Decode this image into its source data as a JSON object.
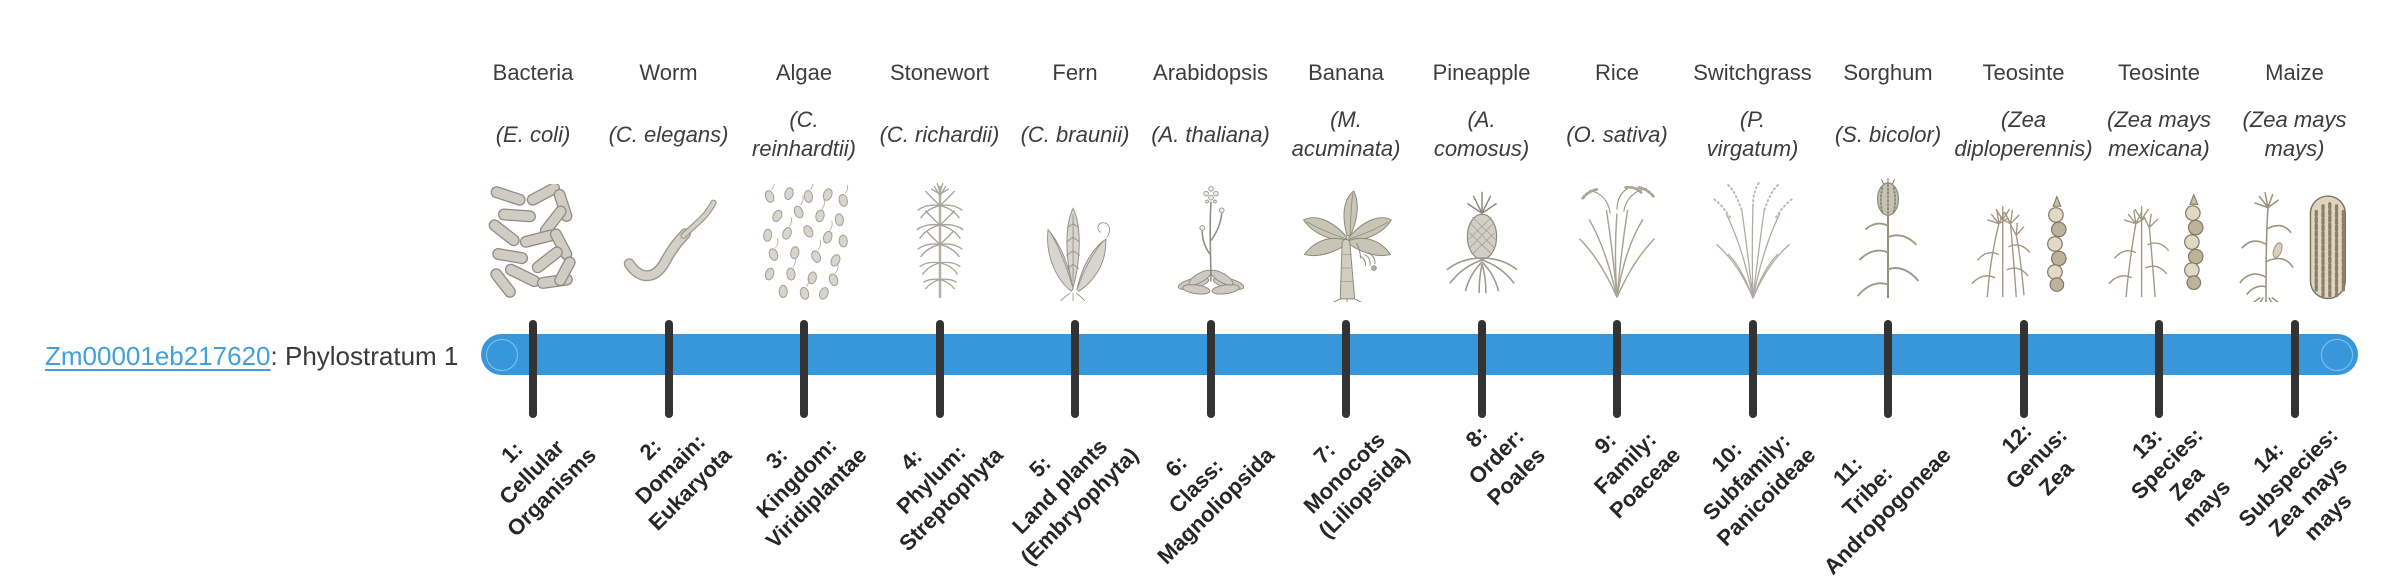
{
  "gene": {
    "id": "Zm00001eb217620",
    "suffix": ": Phylostratum 1"
  },
  "timeline": {
    "bar_color": "#3897db",
    "tick_color": "#333333",
    "link_color": "#419fdd"
  },
  "organisms": [
    {
      "name": "Bacteria",
      "sci": [
        "(E. coli)"
      ],
      "icon": "bacteria"
    },
    {
      "name": "Worm",
      "sci": [
        "(C. elegans)"
      ],
      "icon": "worm"
    },
    {
      "name": "Algae",
      "sci": [
        "(C.",
        "reinhardtii)"
      ],
      "icon": "algae"
    },
    {
      "name": "Stonewort",
      "sci": [
        "(C. richardii)"
      ],
      "icon": "stonewort"
    },
    {
      "name": "Fern",
      "sci": [
        "(C. braunii)"
      ],
      "icon": "fern"
    },
    {
      "name": "Arabidopsis",
      "sci": [
        "(A. thaliana)"
      ],
      "icon": "arabidopsis"
    },
    {
      "name": "Banana",
      "sci": [
        "(M.",
        "acuminata)"
      ],
      "icon": "banana"
    },
    {
      "name": "Pineapple",
      "sci": [
        "(A.",
        "comosus)"
      ],
      "icon": "pineapple"
    },
    {
      "name": "Rice",
      "sci": [
        "(O. sativa)"
      ],
      "icon": "rice"
    },
    {
      "name": "Switchgrass",
      "sci": [
        "(P.",
        "virgatum)"
      ],
      "icon": "switchgrass"
    },
    {
      "name": "Sorghum",
      "sci": [
        "(S. bicolor)"
      ],
      "icon": "sorghum"
    },
    {
      "name": "Teosinte",
      "sci": [
        "(Zea",
        "diploperennis)"
      ],
      "icon": "teosinte-diploperennis"
    },
    {
      "name": "Teosinte",
      "sci": [
        "(Zea mays",
        "mexicana)"
      ],
      "icon": "teosinte-mexicana"
    },
    {
      "name": "Maize",
      "sci": [
        "(Zea mays",
        "mays)"
      ],
      "icon": "maize"
    }
  ],
  "stages": [
    {
      "lines": [
        "1:",
        "Cellular",
        "Organisms"
      ]
    },
    {
      "lines": [
        "2:",
        "Domain:",
        "Eukaryota"
      ]
    },
    {
      "lines": [
        "3:",
        "Kingdom:",
        "Viridiplantae"
      ]
    },
    {
      "lines": [
        "4:",
        "Phylum:",
        "Streptophyta"
      ]
    },
    {
      "lines": [
        "5:",
        "Land plants",
        "(Embryophyta)"
      ]
    },
    {
      "lines": [
        "6:",
        "Class:",
        "Magnoliopsida"
      ]
    },
    {
      "lines": [
        "7:",
        "Monocots",
        "(Liliopsida)"
      ]
    },
    {
      "lines": [
        "8:",
        "Order:",
        "Poales"
      ]
    },
    {
      "lines": [
        "9:",
        "Family:",
        "Poaceae"
      ]
    },
    {
      "lines": [
        "10:",
        "Subfamily:",
        "Panicoideae"
      ]
    },
    {
      "lines": [
        "11:",
        "Tribe:",
        "Andropogoneae"
      ]
    },
    {
      "lines": [
        "12:",
        "Genus:",
        "Zea"
      ]
    },
    {
      "lines": [
        "13:",
        "Species:",
        "Zea",
        "mays"
      ]
    },
    {
      "lines": [
        "14:",
        "Subspecies:",
        "Zea mays",
        "mays"
      ]
    }
  ]
}
